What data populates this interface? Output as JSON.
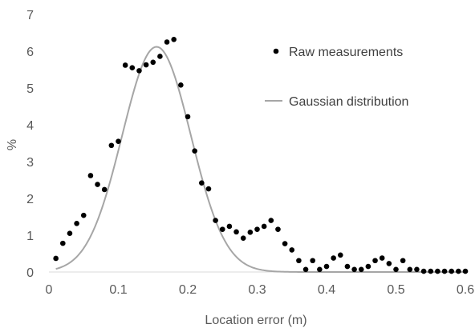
{
  "chart_data": {
    "type": "scatter",
    "title": "",
    "xlabel": "Location error (m)",
    "ylabel": "%",
    "xlim": [
      0,
      0.6
    ],
    "ylim": [
      0,
      7
    ],
    "x_ticks": [
      "0",
      "0.1",
      "0.2",
      "0.3",
      "0.4",
      "0.5",
      "0.6"
    ],
    "y_ticks": [
      "0",
      "1",
      "2",
      "3",
      "4",
      "5",
      "6",
      "7"
    ],
    "grid": false,
    "legend_position": "top-right",
    "series": [
      {
        "name": "Raw measurements",
        "kind": "scatter",
        "color": "#000000",
        "points": [
          [
            0.01,
            0.37
          ],
          [
            0.02,
            0.78
          ],
          [
            0.03,
            1.05
          ],
          [
            0.04,
            1.32
          ],
          [
            0.05,
            1.54
          ],
          [
            0.06,
            2.62
          ],
          [
            0.07,
            2.38
          ],
          [
            0.08,
            2.24
          ],
          [
            0.09,
            3.44
          ],
          [
            0.1,
            3.55
          ],
          [
            0.11,
            5.62
          ],
          [
            0.12,
            5.55
          ],
          [
            0.13,
            5.47
          ],
          [
            0.14,
            5.63
          ],
          [
            0.15,
            5.7
          ],
          [
            0.16,
            5.86
          ],
          [
            0.17,
            6.25
          ],
          [
            0.18,
            6.32
          ],
          [
            0.19,
            5.08
          ],
          [
            0.2,
            4.22
          ],
          [
            0.21,
            3.29
          ],
          [
            0.22,
            2.42
          ],
          [
            0.23,
            2.26
          ],
          [
            0.24,
            1.4
          ],
          [
            0.25,
            1.16
          ],
          [
            0.26,
            1.24
          ],
          [
            0.27,
            1.09
          ],
          [
            0.28,
            0.92
          ],
          [
            0.29,
            1.08
          ],
          [
            0.3,
            1.16
          ],
          [
            0.31,
            1.24
          ],
          [
            0.32,
            1.4
          ],
          [
            0.33,
            1.16
          ],
          [
            0.34,
            0.77
          ],
          [
            0.35,
            0.6
          ],
          [
            0.36,
            0.31
          ],
          [
            0.37,
            0.07
          ],
          [
            0.38,
            0.31
          ],
          [
            0.39,
            0.07
          ],
          [
            0.4,
            0.15
          ],
          [
            0.41,
            0.38
          ],
          [
            0.42,
            0.46
          ],
          [
            0.43,
            0.15
          ],
          [
            0.44,
            0.07
          ],
          [
            0.45,
            0.07
          ],
          [
            0.46,
            0.15
          ],
          [
            0.47,
            0.31
          ],
          [
            0.48,
            0.38
          ],
          [
            0.49,
            0.23
          ],
          [
            0.5,
            0.07
          ],
          [
            0.51,
            0.31
          ],
          [
            0.52,
            0.07
          ],
          [
            0.53,
            0.07
          ],
          [
            0.54,
            0.02
          ],
          [
            0.55,
            0.02
          ],
          [
            0.56,
            0.02
          ],
          [
            0.57,
            0.02
          ],
          [
            0.58,
            0.02
          ],
          [
            0.59,
            0.02
          ],
          [
            0.6,
            0.02
          ]
        ]
      },
      {
        "name": "Gaussian distribution",
        "kind": "line",
        "color": "#a6a6a6",
        "mean": 0.155,
        "sd": 0.0495,
        "amplitude": 6.12,
        "x_range": [
          0.01,
          0.6
        ]
      }
    ]
  }
}
